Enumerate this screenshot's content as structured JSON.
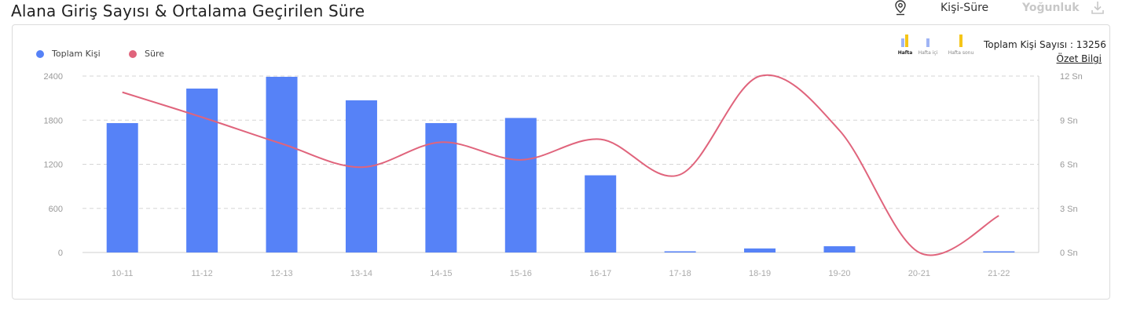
{
  "header": {
    "title": "Alana Giriş Sayısı & Ortalama Geçirilen Süre",
    "tab_active": "Kişi-Süre",
    "tab_inactive": "Yoğunluk"
  },
  "week_switch": {
    "options": [
      "Hafta",
      "Hafta içi",
      "Hafta sonu"
    ],
    "selected": "Hafta"
  },
  "summary": {
    "total_label": "Toplam Kişi Sayısı : 13256",
    "link_label": "Özet Bilgi"
  },
  "colors": {
    "bar": "#5682f7",
    "line": "#e0647c",
    "grid": "#d6d6d6",
    "accent_yellow": "#f5c518",
    "accent_blue": "#9fb4f5"
  },
  "chart_data": {
    "type": "bar",
    "categories": [
      "10-11",
      "11-12",
      "12-13",
      "13-14",
      "14-15",
      "15-16",
      "16-17",
      "17-18",
      "18-19",
      "19-20",
      "20-21",
      "21-22"
    ],
    "series": [
      {
        "name": "Toplam Kişi",
        "type": "bar",
        "axis": "left",
        "values": [
          1760,
          2230,
          2390,
          2070,
          1760,
          1830,
          1050,
          15,
          55,
          85,
          0,
          5
        ]
      },
      {
        "name": "Süre",
        "type": "line",
        "axis": "right",
        "values": [
          10.9,
          9.2,
          7.4,
          5.8,
          7.5,
          6.3,
          7.7,
          5.3,
          12,
          8.3,
          0,
          2.5
        ]
      }
    ],
    "y_left": {
      "ticks": [
        "0",
        "600",
        "1200",
        "1800",
        "2400"
      ],
      "lim": [
        0,
        2400
      ]
    },
    "y_right": {
      "ticks": [
        "0 Sn",
        "3 Sn",
        "6 Sn",
        "9 Sn",
        "12 Sn"
      ],
      "lim": [
        0,
        12
      ]
    },
    "grid": true,
    "legend": "top-left"
  }
}
